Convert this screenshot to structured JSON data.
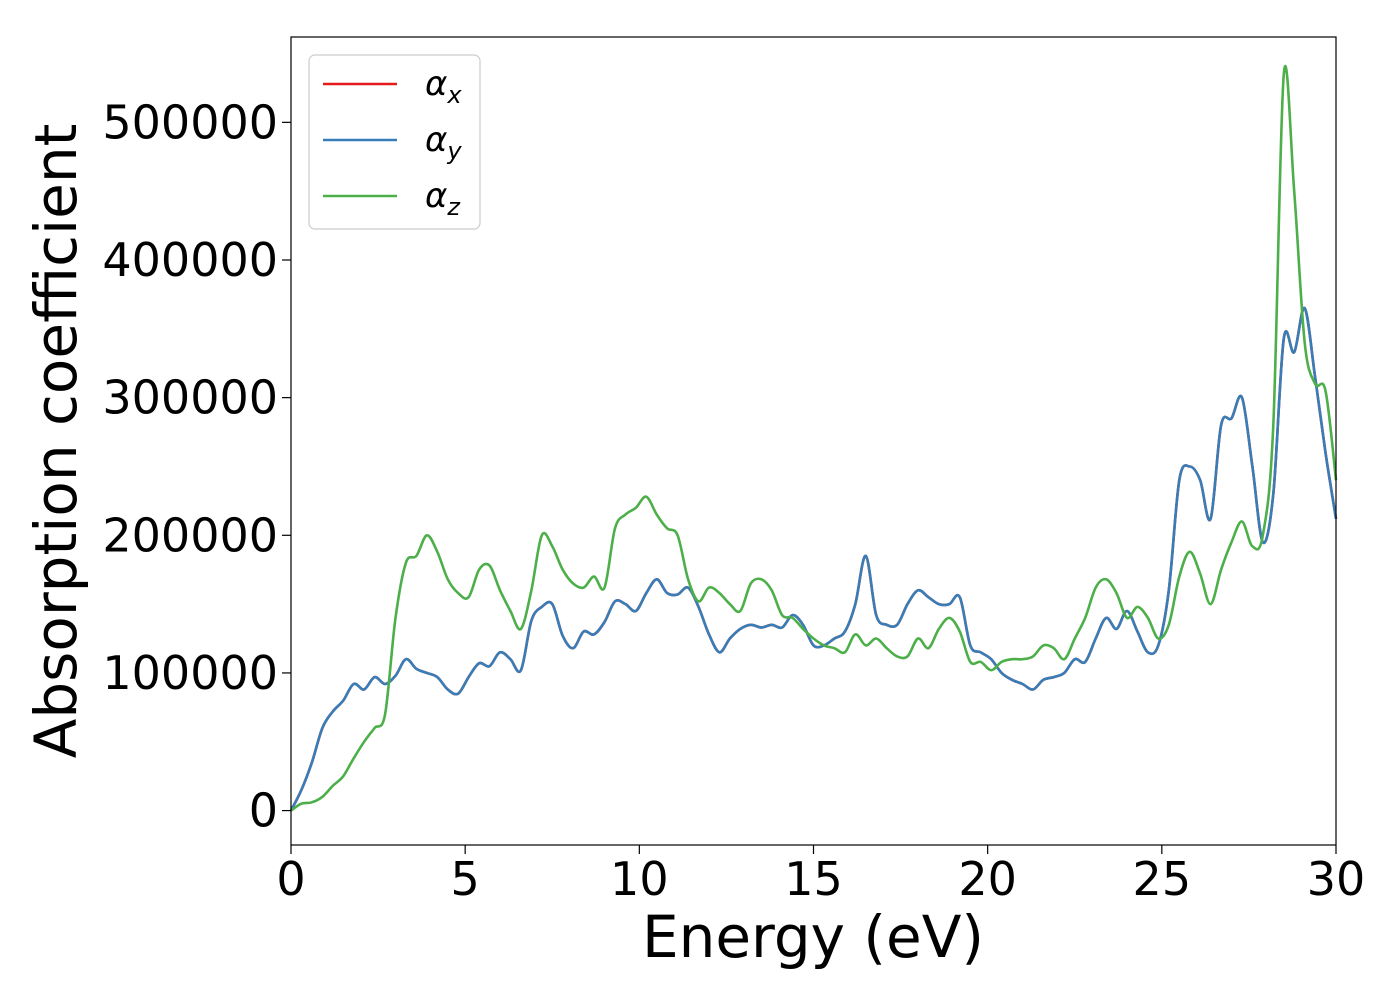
{
  "chart_data": {
    "type": "line",
    "title": "",
    "xlabel": "Energy (eV)",
    "ylabel": "Absorption coefficient",
    "xlim": [
      0,
      30
    ],
    "ylim": [
      -25000,
      562000
    ],
    "xticks": [
      0,
      5,
      10,
      15,
      20,
      25,
      30
    ],
    "yticks": [
      0,
      100000,
      200000,
      300000,
      400000,
      500000
    ],
    "grid": false,
    "legend_position": "top-left",
    "series": [
      {
        "name": "α_x",
        "label_base": "α",
        "label_sub": "x",
        "color": "#e41a1c",
        "x": [
          0,
          0.3,
          0.6,
          0.9,
          1.2,
          1.5,
          1.8,
          2.1,
          2.4,
          2.7,
          3.0,
          3.3,
          3.6,
          3.9,
          4.2,
          4.5,
          4.8,
          5.1,
          5.4,
          5.7,
          6.0,
          6.3,
          6.6,
          6.9,
          7.2,
          7.5,
          7.8,
          8.1,
          8.4,
          8.7,
          9.0,
          9.3,
          9.6,
          9.9,
          10.2,
          10.5,
          10.8,
          11.1,
          11.4,
          11.7,
          12.0,
          12.3,
          12.6,
          12.9,
          13.2,
          13.5,
          13.8,
          14.1,
          14.4,
          14.7,
          15.0,
          15.3,
          15.6,
          15.9,
          16.2,
          16.5,
          16.8,
          17.1,
          17.4,
          17.7,
          18.0,
          18.3,
          18.6,
          18.9,
          19.2,
          19.5,
          19.8,
          20.1,
          20.4,
          20.7,
          21.0,
          21.3,
          21.6,
          21.9,
          22.2,
          22.5,
          22.8,
          23.1,
          23.4,
          23.7,
          24.0,
          24.3,
          24.6,
          24.9,
          25.2,
          25.5,
          25.8,
          26.1,
          26.4,
          26.7,
          27.0,
          27.3,
          27.6,
          27.9,
          28.2,
          28.5,
          28.8,
          29.1,
          29.4,
          29.7,
          30.0
        ],
        "values": [
          0,
          15000,
          35000,
          60000,
          72000,
          80000,
          92000,
          88000,
          97000,
          92000,
          98000,
          110000,
          103000,
          100000,
          97000,
          88000,
          85000,
          97000,
          107000,
          105000,
          115000,
          110000,
          102000,
          138000,
          148000,
          150000,
          127000,
          118000,
          130000,
          128000,
          137000,
          152000,
          150000,
          145000,
          158000,
          168000,
          158000,
          157000,
          162000,
          148000,
          128000,
          115000,
          125000,
          132000,
          135000,
          133000,
          135000,
          133000,
          142000,
          135000,
          120000,
          120000,
          125000,
          130000,
          150000,
          185000,
          142000,
          135000,
          135000,
          150000,
          160000,
          155000,
          150000,
          150000,
          155000,
          120000,
          115000,
          110000,
          100000,
          95000,
          92000,
          88000,
          95000,
          97000,
          100000,
          110000,
          108000,
          125000,
          140000,
          132000,
          145000,
          130000,
          115000,
          120000,
          160000,
          240000,
          250000,
          240000,
          212000,
          280000,
          285000,
          300000,
          250000,
          195000,
          230000,
          343000,
          333000,
          365000,
          315000,
          260000,
          212000
        ]
      },
      {
        "name": "α_y",
        "label_base": "α",
        "label_sub": "y",
        "color": "#377eb8",
        "x": [
          0,
          0.3,
          0.6,
          0.9,
          1.2,
          1.5,
          1.8,
          2.1,
          2.4,
          2.7,
          3.0,
          3.3,
          3.6,
          3.9,
          4.2,
          4.5,
          4.8,
          5.1,
          5.4,
          5.7,
          6.0,
          6.3,
          6.6,
          6.9,
          7.2,
          7.5,
          7.8,
          8.1,
          8.4,
          8.7,
          9.0,
          9.3,
          9.6,
          9.9,
          10.2,
          10.5,
          10.8,
          11.1,
          11.4,
          11.7,
          12.0,
          12.3,
          12.6,
          12.9,
          13.2,
          13.5,
          13.8,
          14.1,
          14.4,
          14.7,
          15.0,
          15.3,
          15.6,
          15.9,
          16.2,
          16.5,
          16.8,
          17.1,
          17.4,
          17.7,
          18.0,
          18.3,
          18.6,
          18.9,
          19.2,
          19.5,
          19.8,
          20.1,
          20.4,
          20.7,
          21.0,
          21.3,
          21.6,
          21.9,
          22.2,
          22.5,
          22.8,
          23.1,
          23.4,
          23.7,
          24.0,
          24.3,
          24.6,
          24.9,
          25.2,
          25.5,
          25.8,
          26.1,
          26.4,
          26.7,
          27.0,
          27.3,
          27.6,
          27.9,
          28.2,
          28.5,
          28.8,
          29.1,
          29.4,
          29.7,
          30.0
        ],
        "values": [
          0,
          15000,
          35000,
          60000,
          72000,
          80000,
          92000,
          88000,
          97000,
          92000,
          98000,
          110000,
          103000,
          100000,
          97000,
          88000,
          85000,
          97000,
          107000,
          105000,
          115000,
          110000,
          102000,
          138000,
          148000,
          150000,
          127000,
          118000,
          130000,
          128000,
          137000,
          152000,
          150000,
          145000,
          158000,
          168000,
          158000,
          157000,
          162000,
          148000,
          128000,
          115000,
          125000,
          132000,
          135000,
          133000,
          135000,
          133000,
          142000,
          135000,
          120000,
          120000,
          125000,
          130000,
          150000,
          185000,
          142000,
          135000,
          135000,
          150000,
          160000,
          155000,
          150000,
          150000,
          155000,
          120000,
          115000,
          110000,
          100000,
          95000,
          92000,
          88000,
          95000,
          97000,
          100000,
          110000,
          108000,
          125000,
          140000,
          132000,
          145000,
          130000,
          115000,
          120000,
          160000,
          240000,
          250000,
          240000,
          212000,
          280000,
          285000,
          300000,
          250000,
          195000,
          230000,
          343000,
          333000,
          365000,
          315000,
          260000,
          212000
        ]
      },
      {
        "name": "α_z",
        "label_base": "α",
        "label_sub": "z",
        "color": "#4daf4a",
        "x": [
          0,
          0.3,
          0.6,
          0.9,
          1.2,
          1.5,
          1.8,
          2.1,
          2.4,
          2.7,
          3.0,
          3.3,
          3.6,
          3.9,
          4.2,
          4.5,
          4.8,
          5.1,
          5.4,
          5.7,
          6.0,
          6.3,
          6.6,
          6.9,
          7.2,
          7.5,
          7.8,
          8.1,
          8.4,
          8.7,
          9.0,
          9.3,
          9.6,
          9.9,
          10.2,
          10.5,
          10.8,
          11.1,
          11.4,
          11.7,
          12.0,
          12.3,
          12.6,
          12.9,
          13.2,
          13.5,
          13.8,
          14.1,
          14.4,
          14.7,
          15.0,
          15.3,
          15.6,
          15.9,
          16.2,
          16.5,
          16.8,
          17.1,
          17.4,
          17.7,
          18.0,
          18.3,
          18.6,
          18.9,
          19.2,
          19.5,
          19.8,
          20.1,
          20.4,
          20.7,
          21.0,
          21.3,
          21.6,
          21.9,
          22.2,
          22.5,
          22.8,
          23.1,
          23.4,
          23.7,
          24.0,
          24.3,
          24.6,
          24.9,
          25.2,
          25.5,
          25.8,
          26.1,
          26.4,
          26.7,
          27.0,
          27.3,
          27.6,
          27.9,
          28.2,
          28.5,
          28.8,
          29.1,
          29.4,
          29.7,
          30.0
        ],
        "values": [
          0,
          5000,
          6000,
          10000,
          18000,
          25000,
          38000,
          50000,
          60000,
          70000,
          140000,
          180000,
          185000,
          200000,
          188000,
          168000,
          158000,
          155000,
          175000,
          178000,
          160000,
          145000,
          132000,
          160000,
          200000,
          192000,
          175000,
          165000,
          162000,
          170000,
          162000,
          205000,
          215000,
          220000,
          228000,
          215000,
          205000,
          200000,
          168000,
          152000,
          162000,
          158000,
          150000,
          145000,
          165000,
          168000,
          160000,
          142000,
          140000,
          132000,
          125000,
          120000,
          118000,
          115000,
          128000,
          120000,
          125000,
          118000,
          112000,
          112000,
          125000,
          118000,
          132000,
          140000,
          130000,
          108000,
          108000,
          102000,
          108000,
          110000,
          110000,
          112000,
          120000,
          118000,
          110000,
          125000,
          140000,
          162000,
          168000,
          158000,
          140000,
          148000,
          140000,
          125000,
          135000,
          170000,
          188000,
          172000,
          150000,
          175000,
          195000,
          210000,
          192000,
          200000,
          280000,
          535000,
          450000,
          340000,
          310000,
          305000,
          240000
        ]
      }
    ]
  }
}
